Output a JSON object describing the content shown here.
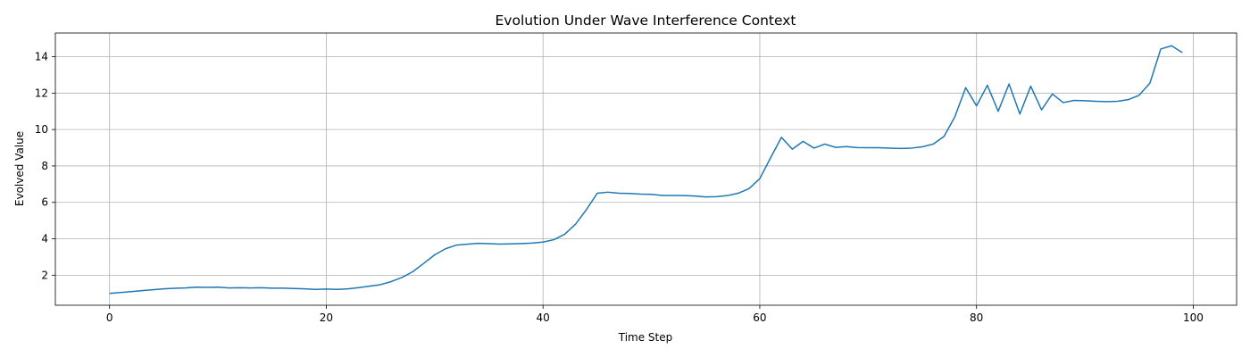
{
  "chart_data": {
    "type": "line",
    "title": "Evolution Under Wave Interference Context",
    "xlabel": "Time Step",
    "ylabel": "Evolved Value",
    "xlim": [
      -5,
      104
    ],
    "ylim": [
      0.35,
      15.3
    ],
    "xticks": [
      0,
      20,
      40,
      60,
      80,
      100
    ],
    "yticks": [
      2,
      4,
      6,
      8,
      10,
      12,
      14
    ],
    "grid": true,
    "series": [
      {
        "color": "#1f77b4",
        "x": [
          0,
          1,
          2,
          3,
          4,
          5,
          6,
          7,
          8,
          9,
          10,
          11,
          12,
          13,
          14,
          15,
          16,
          17,
          18,
          19,
          20,
          21,
          22,
          23,
          24,
          25,
          26,
          27,
          28,
          29,
          30,
          31,
          32,
          33,
          34,
          35,
          36,
          37,
          38,
          39,
          40,
          41,
          42,
          43,
          44,
          45,
          46,
          47,
          48,
          49,
          50,
          51,
          52,
          53,
          54,
          55,
          56,
          57,
          58,
          59,
          60,
          61,
          62,
          63,
          64,
          65,
          66,
          67,
          68,
          69,
          70,
          71,
          72,
          73,
          74,
          75,
          76,
          77,
          78,
          79,
          80,
          81,
          82,
          83,
          84,
          85,
          86,
          87,
          88,
          89,
          90,
          91,
          92,
          93,
          94,
          95,
          96,
          97,
          98,
          99
        ],
        "values": [
          1.0,
          1.05,
          1.1,
          1.15,
          1.2,
          1.25,
          1.28,
          1.3,
          1.34,
          1.33,
          1.34,
          1.3,
          1.31,
          1.3,
          1.31,
          1.29,
          1.29,
          1.27,
          1.25,
          1.22,
          1.24,
          1.22,
          1.25,
          1.32,
          1.4,
          1.48,
          1.65,
          1.88,
          2.2,
          2.65,
          3.12,
          3.45,
          3.65,
          3.7,
          3.75,
          3.73,
          3.71,
          3.72,
          3.74,
          3.76,
          3.82,
          3.95,
          4.25,
          4.8,
          5.6,
          6.5,
          6.56,
          6.5,
          6.49,
          6.45,
          6.44,
          6.38,
          6.38,
          6.37,
          6.35,
          6.3,
          6.31,
          6.37,
          6.5,
          6.75,
          7.3,
          8.45,
          9.57,
          8.92,
          9.35,
          8.98,
          9.2,
          9.02,
          9.06,
          9.01,
          9.0,
          9.0,
          8.98,
          8.96,
          8.98,
          9.05,
          9.2,
          9.62,
          10.7,
          12.3,
          11.3,
          12.43,
          11.0,
          12.5,
          10.85,
          12.38,
          11.08,
          11.95,
          11.48,
          11.6,
          11.58,
          11.55,
          11.53,
          11.55,
          11.64,
          11.88,
          12.55,
          14.42,
          14.6,
          14.22
        ]
      }
    ]
  }
}
